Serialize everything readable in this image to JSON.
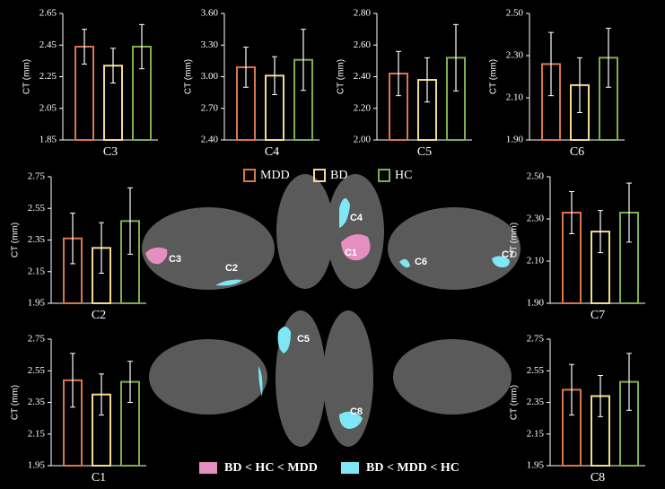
{
  "chart_data": [
    {
      "type": "bar",
      "xlabel": "C3",
      "ylabel": "CT (mm)",
      "values": [
        2.44,
        2.32,
        2.44
      ],
      "errors": [
        0.11,
        0.11,
        0.14
      ],
      "ylim": [
        1.85,
        2.65
      ],
      "yticks": [
        1.85,
        2.05,
        2.25,
        2.45,
        2.65
      ]
    },
    {
      "type": "bar",
      "xlabel": "C4",
      "ylabel": "CT (mm)",
      "values": [
        3.09,
        3.01,
        3.16
      ],
      "errors": [
        0.19,
        0.18,
        0.29
      ],
      "ylim": [
        2.4,
        3.6
      ],
      "yticks": [
        {
          "value": 2.4,
          "label": "2.40"
        },
        {
          "value": 2.7,
          "label": "2.70"
        },
        {
          "value": 3,
          "label": "3.00"
        },
        {
          "value": 3.3,
          "label": "3.30"
        },
        {
          "value": 3.6,
          "label": "3.60"
        }
      ]
    },
    {
      "type": "bar",
      "xlabel": "C5",
      "ylabel": "CT (mm)",
      "values": [
        2.42,
        2.38,
        2.52
      ],
      "errors": [
        0.14,
        0.14,
        0.21
      ],
      "ylim": [
        2.0,
        2.8
      ],
      "yticks": [
        {
          "value": 2,
          "label": "2.00"
        },
        {
          "value": 2.2,
          "label": "2.20"
        },
        {
          "value": 2.4,
          "label": "2.40"
        },
        {
          "value": 2.6,
          "label": "2.60"
        },
        {
          "value": 2.8,
          "label": "2.80"
        }
      ]
    },
    {
      "type": "bar",
      "xlabel": "C6",
      "ylabel": "CT (mm)",
      "values": [
        2.26,
        2.16,
        2.29
      ],
      "errors": [
        0.15,
        0.13,
        0.14
      ],
      "ylim": [
        1.9,
        2.5
      ],
      "yticks": [
        {
          "value": 1.9,
          "label": "1.90"
        },
        {
          "value": 2.1,
          "label": "2.10"
        },
        {
          "value": 2.3,
          "label": "2.30"
        },
        {
          "value": 2.5,
          "label": "2.50"
        }
      ]
    },
    {
      "type": "bar",
      "xlabel": "C2",
      "ylabel": "CT (mm)",
      "values": [
        2.36,
        2.3,
        2.47
      ],
      "errors": [
        0.16,
        0.16,
        0.21
      ],
      "ylim": [
        1.95,
        2.75
      ],
      "yticks": [
        1.95,
        2.15,
        2.35,
        2.55,
        2.75
      ]
    },
    {
      "type": "bar",
      "xlabel": "C7",
      "ylabel": "CT (mm)",
      "values": [
        2.33,
        2.24,
        2.33
      ],
      "errors": [
        0.1,
        0.1,
        0.14
      ],
      "ylim": [
        1.9,
        2.5
      ],
      "yticks": [
        {
          "value": 1.9,
          "label": "1.90"
        },
        {
          "value": 2.1,
          "label": "2.10"
        },
        {
          "value": 2.3,
          "label": "2.30"
        },
        {
          "value": 2.5,
          "label": "2.50"
        }
      ]
    },
    {
      "type": "bar",
      "xlabel": "C1",
      "ylabel": "CT (mm)",
      "values": [
        2.49,
        2.4,
        2.48
      ],
      "errors": [
        0.17,
        0.13,
        0.13
      ],
      "ylim": [
        1.95,
        2.75
      ],
      "yticks": [
        1.95,
        2.15,
        2.35,
        2.55,
        2.75
      ]
    },
    {
      "type": "bar",
      "xlabel": "C8",
      "ylabel": "CT (mm)",
      "values": [
        2.43,
        2.39,
        2.48
      ],
      "errors": [
        0.16,
        0.13,
        0.18
      ],
      "ylim": [
        1.95,
        2.75
      ],
      "yticks": [
        1.95,
        2.15,
        2.35,
        2.55,
        2.75
      ]
    }
  ],
  "legend": [
    {
      "name": "MDD",
      "color": "#d9774a"
    },
    {
      "name": "BD",
      "color": "#f2dc8c"
    },
    {
      "name": "HC",
      "color": "#7fae4f"
    }
  ],
  "region_legend": [
    {
      "name": "BD < HC < MDD",
      "color": "#e58ec0"
    },
    {
      "name": "BD < MDD < HC",
      "color": "#7fe6f6"
    }
  ],
  "brain_labels": [
    "C3",
    "C2",
    "C4",
    "C1",
    "C6",
    "C7",
    "C5",
    "C8"
  ]
}
